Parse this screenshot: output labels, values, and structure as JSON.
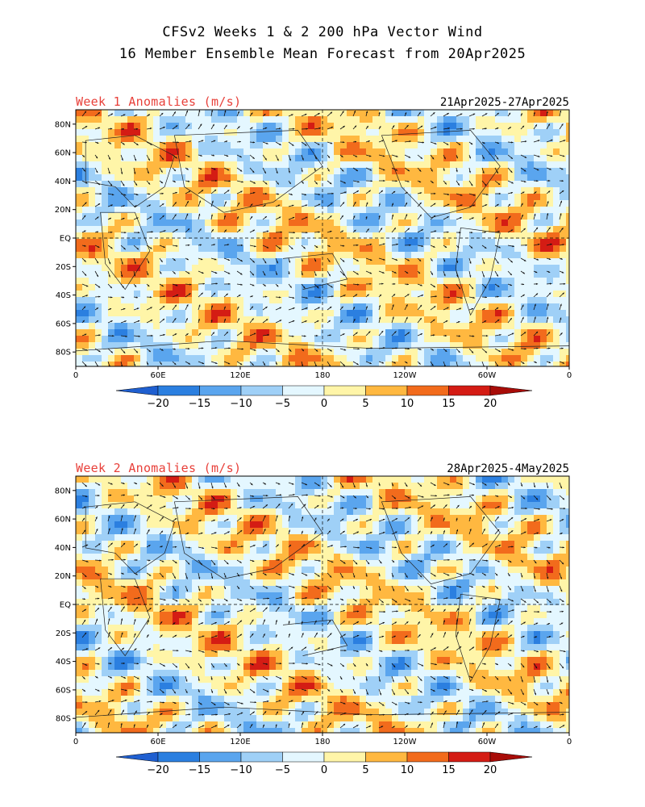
{
  "header": {
    "title_line1": "CFSv2 Weeks 1 & 2 200 hPa Vector Wind",
    "title_line2": "16 Member Ensemble Mean Forecast from 20Apr2025"
  },
  "panels": [
    {
      "label": "Week 1 Anomalies (m/s)",
      "dates": "21Apr2025-27Apr2025"
    },
    {
      "label": "Week 2 Anomalies (m/s)",
      "dates": "28Apr2025-4May2025"
    }
  ],
  "axes": {
    "lat_labels": [
      "80N",
      "60N",
      "40N",
      "20N",
      "EQ",
      "20S",
      "40S",
      "60S",
      "80S"
    ],
    "lon_labels": [
      "0",
      "60E",
      "120E",
      "180",
      "120W",
      "60W",
      "0"
    ]
  },
  "colorbar": {
    "ticks": [
      "-20",
      "-15",
      "-10",
      "-5",
      "0",
      "5",
      "10",
      "15",
      "20"
    ],
    "colors": [
      "#1f5fd0",
      "#2b7fe0",
      "#5aa5ee",
      "#9fd0f7",
      "#e4f7ff",
      "#fff5a8",
      "#ffb840",
      "#f26b1c",
      "#d41c14",
      "#a80c08"
    ]
  }
}
